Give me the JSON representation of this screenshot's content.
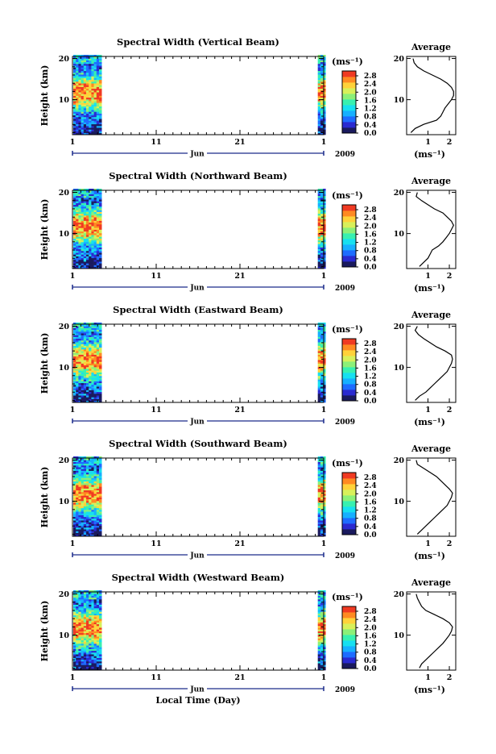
{
  "colors": {
    "scale": [
      "#1a1a5e",
      "#2a2ad0",
      "#1e6cff",
      "#17b0ff",
      "#17e0f0",
      "#38f0b0",
      "#8cf078",
      "#d8f05a",
      "#ffd23a",
      "#ff8a22",
      "#f03a22"
    ],
    "frame": "#000000",
    "axis_line": "#1a2a8a"
  },
  "chart_data": [
    {
      "type": "heatmap",
      "title": "Spectral Width (Vertical Beam)",
      "ylabel": "Height (km)",
      "y_ticks": [
        "20",
        "10"
      ],
      "x_ticks": [
        "1",
        "11",
        "21",
        "1"
      ],
      "month_label": "Jun",
      "year_label": "2009",
      "colorbar_unit": "(ms⁻¹)",
      "colorbar_ticks": [
        "0.0",
        "0.4",
        "0.8",
        "1.2",
        "1.6",
        "2.0",
        "2.4",
        "2.8"
      ],
      "data_periods_day": [
        [
          1,
          4.3
        ],
        [
          30.2,
          31
        ]
      ],
      "average": {
        "title": "Average",
        "xlabel": "(ms⁻¹)",
        "x_ticks": [
          "1",
          "2"
        ],
        "y_ticks": [
          "20",
          "10"
        ],
        "height_km": [
          2,
          3,
          4,
          5,
          6,
          7,
          8,
          9,
          10,
          11,
          12,
          13,
          14,
          15,
          16,
          17,
          18,
          19,
          20
        ],
        "width_ms": [
          0.2,
          0.4,
          0.8,
          1.4,
          1.6,
          1.7,
          1.8,
          1.95,
          2.1,
          2.2,
          2.2,
          2.1,
          1.9,
          1.6,
          1.2,
          0.8,
          0.5,
          0.35,
          0.3
        ]
      }
    },
    {
      "type": "heatmap",
      "title": "Spectral Width (Northward Beam)",
      "ylabel": "Height (km)",
      "y_ticks": [
        "20",
        "10"
      ],
      "x_ticks": [
        "1",
        "11",
        "21",
        "1"
      ],
      "month_label": "Jun",
      "year_label": "2009",
      "colorbar_unit": "(ms⁻¹)",
      "colorbar_ticks": [
        "0.0",
        "0.4",
        "0.8",
        "1.2",
        "1.6",
        "2.0",
        "2.4",
        "2.8"
      ],
      "data_periods_day": [
        [
          1,
          4.3
        ],
        [
          30.2,
          31
        ]
      ],
      "average": {
        "title": "Average",
        "xlabel": "(ms⁻¹)",
        "x_ticks": [
          "1",
          "2"
        ],
        "y_ticks": [
          "20",
          "10"
        ],
        "height_km": [
          2,
          3,
          4,
          5,
          6,
          7,
          8,
          9,
          10,
          11,
          12,
          13,
          14,
          15,
          16,
          17,
          18,
          19,
          20
        ],
        "width_ms": [
          0.6,
          0.8,
          1.0,
          1.1,
          1.2,
          1.5,
          1.7,
          1.85,
          2.0,
          2.1,
          2.2,
          2.1,
          1.9,
          1.7,
          1.3,
          1.0,
          0.7,
          0.45,
          0.5
        ]
      }
    },
    {
      "type": "heatmap",
      "title": "Spectral Width (Eastward Beam)",
      "ylabel": "Height (km)",
      "y_ticks": [
        "20",
        "10"
      ],
      "x_ticks": [
        "1",
        "11",
        "21",
        "1"
      ],
      "month_label": "Jun",
      "year_label": "2009",
      "colorbar_unit": "(ms⁻¹)",
      "colorbar_ticks": [
        "0.0",
        "0.4",
        "0.8",
        "1.2",
        "1.6",
        "2.0",
        "2.4",
        "2.8"
      ],
      "data_periods_day": [
        [
          1,
          4.3
        ],
        [
          30.2,
          31
        ]
      ],
      "average": {
        "title": "Average",
        "xlabel": "(ms⁻¹)",
        "x_ticks": [
          "1",
          "2"
        ],
        "y_ticks": [
          "20",
          "10"
        ],
        "height_km": [
          2,
          3,
          4,
          5,
          6,
          7,
          8,
          9,
          10,
          11,
          12,
          13,
          14,
          15,
          16,
          17,
          18,
          19,
          20
        ],
        "width_ms": [
          0.4,
          0.6,
          0.9,
          1.1,
          1.3,
          1.5,
          1.7,
          1.9,
          2.0,
          2.1,
          2.15,
          2.1,
          1.8,
          1.4,
          1.1,
          0.8,
          0.55,
          0.4,
          0.5
        ]
      }
    },
    {
      "type": "heatmap",
      "title": "Spectral Width (Southward Beam)",
      "ylabel": "Height (km)",
      "y_ticks": [
        "20",
        "10"
      ],
      "x_ticks": [
        "1",
        "11",
        "21",
        "1"
      ],
      "month_label": "Jun",
      "year_label": "2009",
      "colorbar_unit": "(ms⁻¹)",
      "colorbar_ticks": [
        "0.0",
        "0.4",
        "0.8",
        "1.2",
        "1.6",
        "2.0",
        "2.4",
        "2.8"
      ],
      "data_periods_day": [
        [
          1,
          4.3
        ],
        [
          30.2,
          31
        ]
      ],
      "average": {
        "title": "Average",
        "xlabel": "(ms⁻¹)",
        "x_ticks": [
          "1",
          "2"
        ],
        "y_ticks": [
          "20",
          "10"
        ],
        "height_km": [
          2,
          3,
          4,
          5,
          6,
          7,
          8,
          9,
          10,
          11,
          12,
          13,
          14,
          15,
          16,
          17,
          18,
          19,
          20
        ],
        "width_ms": [
          0.5,
          0.7,
          0.9,
          1.1,
          1.3,
          1.5,
          1.7,
          1.9,
          2.0,
          2.1,
          2.15,
          2.0,
          1.8,
          1.6,
          1.4,
          1.1,
          0.8,
          0.5,
          0.45
        ]
      }
    },
    {
      "type": "heatmap",
      "title": "Spectral Width (Westward Beam)",
      "ylabel": "Height (km)",
      "y_ticks": [
        "20",
        "10"
      ],
      "x_ticks": [
        "1",
        "11",
        "21",
        "1"
      ],
      "month_label": "Jun",
      "year_label": "2009",
      "x_axis_title": "Local Time (Day)",
      "colorbar_unit": "(ms⁻¹)",
      "colorbar_ticks": [
        "0.0",
        "0.4",
        "0.8",
        "1.2",
        "1.6",
        "2.0",
        "2.4",
        "2.8"
      ],
      "data_periods_day": [
        [
          1,
          4.3
        ],
        [
          30.2,
          31
        ]
      ],
      "average": {
        "title": "Average",
        "xlabel": "(ms⁻¹)",
        "x_ticks": [
          "1",
          "2"
        ],
        "y_ticks": [
          "20",
          "10"
        ],
        "height_km": [
          2,
          3,
          4,
          5,
          6,
          7,
          8,
          9,
          10,
          11,
          12,
          13,
          14,
          15,
          16,
          17,
          18,
          19,
          20
        ],
        "width_ms": [
          0.6,
          0.7,
          0.9,
          1.1,
          1.3,
          1.5,
          1.7,
          1.85,
          2.0,
          2.1,
          2.15,
          2.0,
          1.7,
          1.3,
          0.9,
          0.7,
          0.6,
          0.5,
          0.45
        ]
      }
    }
  ]
}
